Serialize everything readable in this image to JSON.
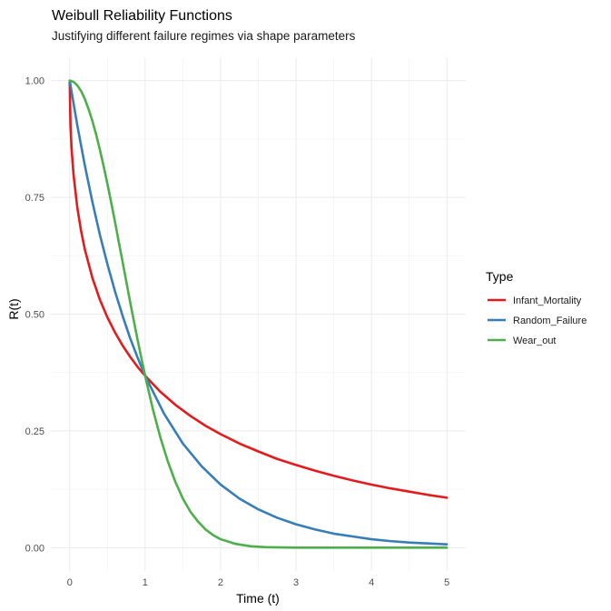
{
  "chart_data": {
    "type": "line",
    "title": "Weibull Reliability Functions",
    "subtitle": "Justifying different failure regimes via shape parameters",
    "xlabel": "Time (t)",
    "ylabel": "R(t)",
    "xlim": [
      -0.25,
      5.25
    ],
    "ylim": [
      -0.05,
      1.05
    ],
    "x_ticks": [
      0,
      1,
      2,
      3,
      4,
      5
    ],
    "x_tick_labels": [
      "0",
      "1",
      "2",
      "3",
      "4",
      "5"
    ],
    "y_ticks": [
      0,
      0.25,
      0.5,
      0.75,
      1
    ],
    "y_tick_labels": [
      "0.00",
      "0.25",
      "0.50",
      "0.75",
      "1.00"
    ],
    "grid": true,
    "legend": {
      "title": "Type",
      "position": "right"
    },
    "series": [
      {
        "name": "Infant_Mortality",
        "color": "#E41A1C",
        "x": [
          0,
          0.01,
          0.025,
          0.05,
          0.1,
          0.15,
          0.2,
          0.3,
          0.4,
          0.5,
          0.6,
          0.7,
          0.8,
          0.9,
          1.0,
          1.2,
          1.4,
          1.6,
          1.8,
          2.0,
          2.25,
          2.5,
          2.75,
          3.0,
          3.25,
          3.5,
          3.75,
          4.0,
          4.25,
          4.5,
          4.75,
          5.0
        ],
        "y": [
          1.0,
          0.905,
          0.854,
          0.8,
          0.729,
          0.679,
          0.639,
          0.578,
          0.531,
          0.493,
          0.461,
          0.433,
          0.409,
          0.387,
          0.368,
          0.334,
          0.306,
          0.282,
          0.261,
          0.243,
          0.223,
          0.206,
          0.19,
          0.177,
          0.165,
          0.154,
          0.144,
          0.135,
          0.127,
          0.12,
          0.113,
          0.107
        ]
      },
      {
        "name": "Random_Failure",
        "color": "#377EB8",
        "x": [
          0,
          0.1,
          0.2,
          0.3,
          0.4,
          0.5,
          0.6,
          0.7,
          0.8,
          0.9,
          1.0,
          1.25,
          1.5,
          1.75,
          2.0,
          2.25,
          2.5,
          2.75,
          3.0,
          3.25,
          3.5,
          3.75,
          4.0,
          4.25,
          4.5,
          4.75,
          5.0
        ],
        "y": [
          1.0,
          0.905,
          0.819,
          0.741,
          0.67,
          0.607,
          0.549,
          0.497,
          0.449,
          0.407,
          0.368,
          0.287,
          0.223,
          0.174,
          0.135,
          0.105,
          0.082,
          0.064,
          0.05,
          0.039,
          0.03,
          0.024,
          0.018,
          0.014,
          0.011,
          0.009,
          0.007
        ]
      },
      {
        "name": "Wear_out",
        "color": "#4DAF4A",
        "x": [
          0,
          0.05,
          0.1,
          0.15,
          0.2,
          0.25,
          0.3,
          0.35,
          0.4,
          0.45,
          0.5,
          0.55,
          0.6,
          0.65,
          0.7,
          0.75,
          0.8,
          0.85,
          0.9,
          0.95,
          1.0,
          1.1,
          1.2,
          1.3,
          1.4,
          1.5,
          1.6,
          1.7,
          1.8,
          1.9,
          2.0,
          2.2,
          2.4,
          2.6,
          2.8,
          3.0,
          3.5,
          4.0,
          4.5,
          5.0
        ],
        "y": [
          1.0,
          0.9975,
          0.99,
          0.978,
          0.961,
          0.939,
          0.914,
          0.885,
          0.852,
          0.817,
          0.779,
          0.739,
          0.698,
          0.655,
          0.613,
          0.57,
          0.527,
          0.486,
          0.445,
          0.406,
          0.368,
          0.298,
          0.237,
          0.185,
          0.141,
          0.105,
          0.077,
          0.056,
          0.039,
          0.027,
          0.018,
          0.008,
          0.003,
          0.001,
          0.0004,
          0.0001,
          0.0,
          0.0,
          0.0,
          0.0
        ]
      }
    ]
  }
}
